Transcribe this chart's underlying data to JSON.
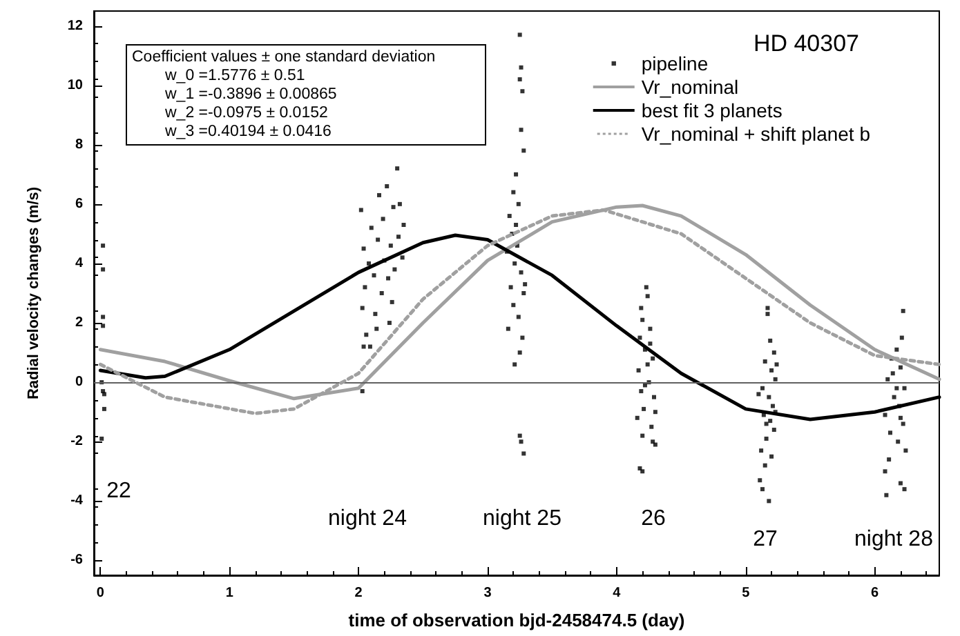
{
  "chart_data": {
    "type": "scatter",
    "title": "HD 40307",
    "xlabel": "time of observation bjd-2458474.5 (day)",
    "ylabel": "Radial velocity changes (m/s)",
    "xlim": [
      -0.05,
      6.5
    ],
    "xticks": [
      0,
      1,
      2,
      3,
      4,
      5,
      6
    ],
    "ylim": [
      -6.5,
      12.5
    ],
    "yticks": [
      -6,
      -4,
      -2,
      0,
      2,
      4,
      6,
      8,
      10,
      12
    ],
    "grid": false,
    "legend": "top right",
    "ref_lines": [
      {
        "axis": "y",
        "value": 0,
        "color": "#606060"
      }
    ],
    "annotations": [
      "Coefficient values ± one standard deviation",
      "w_0 =1.5776 ± 0.51",
      "w_1 =-0.3896 ± 0.00865",
      "w_2 =-0.0975 ± 0.0152",
      "w_3 =0.40194 ± 0.0416",
      "22",
      "night 24",
      "night 25",
      "26",
      "27",
      "night 28"
    ],
    "series": [
      {
        "name": "pipeline",
        "type": "scatter",
        "marker": "square",
        "color": "#000000",
        "x": [
          0.02,
          0.02,
          0.02,
          0.02,
          0.01,
          0.02,
          0.03,
          0.03,
          0.01,
          2.02,
          2.04,
          2.05,
          2.03,
          2.06,
          2.04,
          2.09,
          2.03,
          2.08,
          2.1,
          2.12,
          2.13,
          2.15,
          2.16,
          2.18,
          2.19,
          2.2,
          2.22,
          2.23,
          2.24,
          2.25,
          2.27,
          2.28,
          2.3,
          2.31,
          2.32,
          2.34,
          2.35,
          2.26,
          2.14,
          3.25,
          3.26,
          3.25,
          3.27,
          3.26,
          3.28,
          3.22,
          3.2,
          3.24,
          3.17,
          3.19,
          3.23,
          3.15,
          3.21,
          3.26,
          3.18,
          3.28,
          3.2,
          3.24,
          3.16,
          3.27,
          3.25,
          3.21,
          3.29,
          3.22,
          3.25,
          3.26,
          3.28,
          4.23,
          4.24,
          4.2,
          4.26,
          4.18,
          4.22,
          4.28,
          4.17,
          4.25,
          4.19,
          4.29,
          4.21,
          4.16,
          4.27,
          4.2,
          4.3,
          4.18,
          4.2,
          4.24,
          4.22,
          4.26,
          4.3,
          4.19,
          4.28,
          5.17,
          5.17,
          5.19,
          5.22,
          5.15,
          5.2,
          5.23,
          5.13,
          5.18,
          5.21,
          5.14,
          5.19,
          5.22,
          5.16,
          5.12,
          5.2,
          5.15,
          5.11,
          5.13,
          5.18,
          5.24,
          5.1,
          5.16,
          5.23,
          6.22,
          6.21,
          6.17,
          6.13,
          6.2,
          6.1,
          6.23,
          6.15,
          6.19,
          6.08,
          6.22,
          6.12,
          6.18,
          6.24,
          6.11,
          6.08,
          6.2,
          6.09,
          6.23,
          6.14,
          6.2,
          6.17
        ],
        "values": [
          4.6,
          3.8,
          2.2,
          1.9,
          0.0,
          -0.3,
          -0.4,
          -0.9,
          -1.9,
          5.8,
          4.5,
          3.2,
          2.5,
          1.6,
          1.2,
          1.2,
          -0.3,
          4.0,
          5.2,
          3.6,
          2.3,
          4.8,
          6.3,
          3.0,
          5.5,
          4.1,
          6.6,
          3.5,
          2.0,
          4.6,
          5.9,
          3.8,
          7.2,
          4.9,
          6.0,
          4.2,
          5.3,
          2.7,
          1.8,
          11.7,
          10.6,
          10.2,
          9.8,
          8.5,
          7.8,
          7.0,
          6.4,
          6.0,
          5.6,
          5.0,
          4.6,
          4.4,
          4.0,
          3.7,
          3.2,
          3.0,
          2.6,
          2.2,
          1.8,
          1.5,
          1.0,
          0.6,
          3.3,
          5.3,
          -1.8,
          -2.0,
          -2.4,
          3.2,
          2.9,
          2.1,
          1.8,
          1.5,
          1.1,
          0.8,
          0.4,
          0.0,
          -0.3,
          -0.5,
          -0.9,
          -1.2,
          -1.5,
          -1.8,
          -2.1,
          -2.9,
          -3.0,
          0.6,
          -0.1,
          1.3,
          -1.0,
          2.5,
          -2.0,
          2.5,
          2.3,
          1.4,
          1.0,
          0.7,
          0.4,
          0.1,
          -0.2,
          -0.5,
          -0.8,
          -1.1,
          -1.3,
          -1.6,
          -1.9,
          -2.3,
          -2.5,
          -2.8,
          -3.3,
          -3.6,
          -4.0,
          0.6,
          -0.4,
          -1.4,
          -1.0,
          2.4,
          1.5,
          1.1,
          0.8,
          0.5,
          0.1,
          -0.2,
          -0.5,
          -0.8,
          -1.1,
          -1.4,
          -1.7,
          -2.0,
          -2.3,
          -2.6,
          -3.0,
          -3.4,
          -3.8,
          -3.6,
          0.3,
          -1.2,
          -0.2
        ]
      },
      {
        "name": "Vr_nominal",
        "type": "line",
        "marker": "none",
        "line_style": "solid",
        "color": "#a0a0a0",
        "x": [
          0,
          0.5,
          1,
          1.5,
          2,
          2.5,
          3,
          3.5,
          4,
          4.2,
          4.5,
          5,
          5.5,
          6,
          6.5
        ],
        "values": [
          1.1,
          0.7,
          0.05,
          -0.55,
          -0.2,
          2.0,
          4.1,
          5.4,
          5.9,
          5.95,
          5.6,
          4.3,
          2.6,
          1.1,
          0.1
        ]
      },
      {
        "name": "best fit 3 planets",
        "type": "line",
        "marker": "none",
        "line_style": "solid",
        "color": "#000000",
        "x": [
          0,
          0.35,
          0.5,
          1,
          1.5,
          2,
          2.5,
          2.75,
          3,
          3.5,
          4,
          4.5,
          5,
          5.5,
          6,
          6.5
        ],
        "values": [
          0.4,
          0.15,
          0.2,
          1.1,
          2.4,
          3.7,
          4.7,
          4.95,
          4.8,
          3.6,
          1.9,
          0.3,
          -0.9,
          -1.25,
          -1.0,
          -0.5
        ]
      },
      {
        "name": "Vr_nominal + shift planet b",
        "type": "line",
        "marker": "none",
        "line_style": "dotted",
        "color": "#a0a0a0",
        "x": [
          0,
          0.5,
          1.2,
          1.5,
          2,
          2.5,
          3,
          3.5,
          3.9,
          4.5,
          5,
          5.5,
          6,
          6.5
        ],
        "values": [
          0.6,
          -0.5,
          -1.05,
          -0.9,
          0.3,
          2.8,
          4.6,
          5.6,
          5.8,
          5.0,
          3.5,
          2.0,
          0.9,
          0.6
        ]
      }
    ]
  }
}
